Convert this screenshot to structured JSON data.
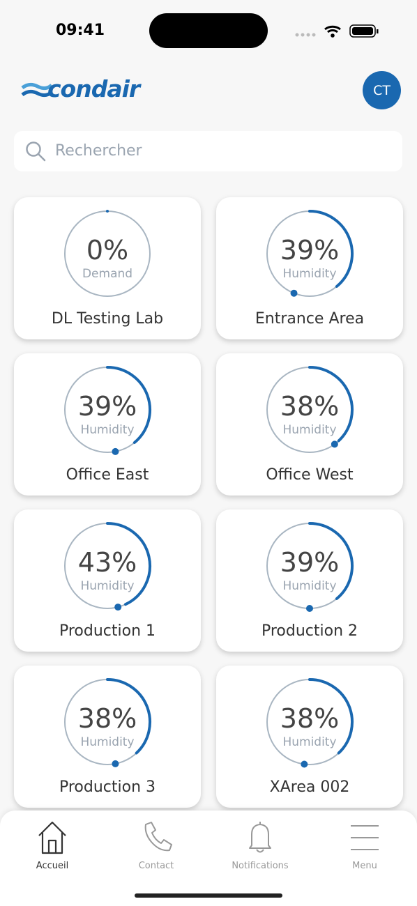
{
  "status_bar": {
    "time": "09:41"
  },
  "header": {
    "logo": "condair",
    "avatar": "CT"
  },
  "search": {
    "placeholder": "Rechercher"
  },
  "devices": [
    {
      "name": "DL Testing Lab",
      "reading": {
        "value": 0,
        "label": "0%"
      },
      "metric": "Demand"
    },
    {
      "name": "Entrance Area",
      "reading": {
        "value": 39,
        "label": "39%"
      },
      "metric": "Humidity",
      "setpoint": 56
    },
    {
      "name": "Office East",
      "reading": {
        "value": 39,
        "label": "39%"
      },
      "metric": "Humidity",
      "setpoint": 47
    },
    {
      "name": "Office West",
      "reading": {
        "value": 38,
        "label": "38%"
      },
      "metric": "Humidity",
      "setpoint": 40
    },
    {
      "name": "Production 1",
      "reading": {
        "value": 43,
        "label": "43%"
      },
      "metric": "Humidity",
      "setpoint": 46
    },
    {
      "name": "Production 2",
      "reading": {
        "value": 39,
        "label": "39%"
      },
      "metric": "Humidity",
      "setpoint": 50
    },
    {
      "name": "Production 3",
      "reading": {
        "value": 38,
        "label": "38%"
      },
      "metric": "Humidity",
      "setpoint": 47
    },
    {
      "name": "XArea 002",
      "reading": {
        "value": 38,
        "label": "38%"
      },
      "metric": "Humidity",
      "setpoint": 52
    }
  ],
  "nav": [
    {
      "label": "Accueil"
    },
    {
      "label": "Contact"
    },
    {
      "label": "Notifications"
    },
    {
      "label": "Menu"
    }
  ]
}
